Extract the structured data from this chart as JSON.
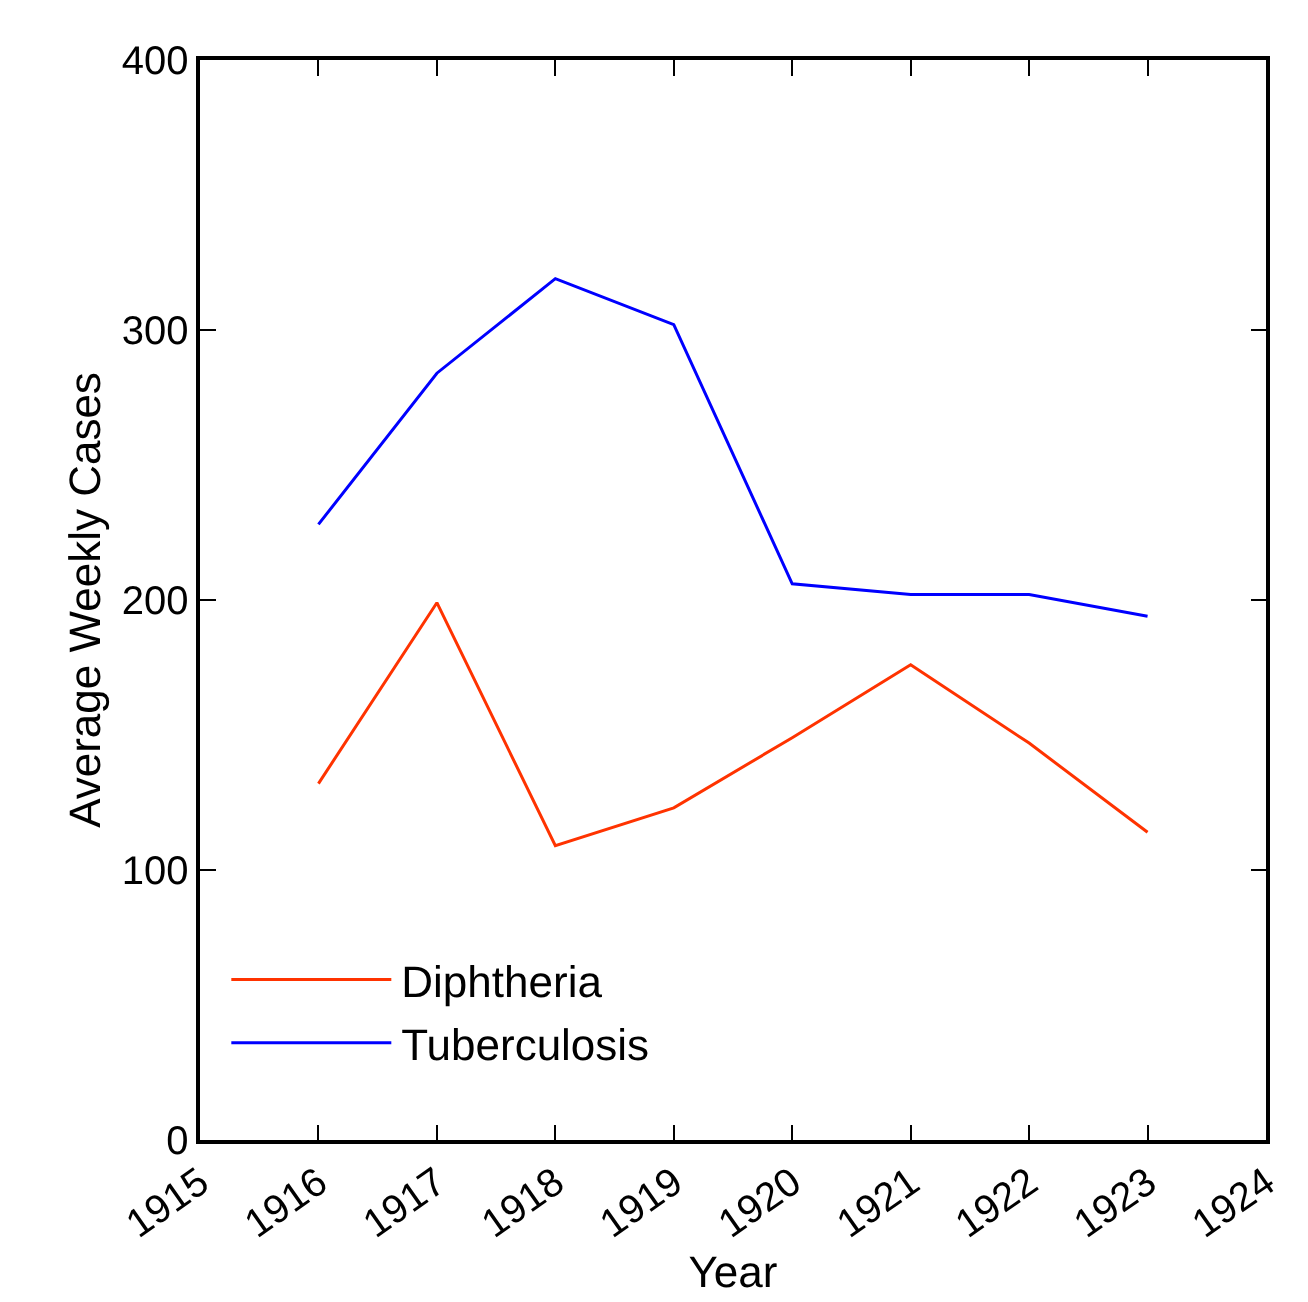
{
  "chart_data": {
    "type": "line",
    "xlabel": "Year",
    "ylabel": "Average Weekly Cases",
    "x": [
      1916,
      1917,
      1918,
      1919,
      1920,
      1921,
      1922,
      1923
    ],
    "series": [
      {
        "name": "Diphtheria",
        "color": "#ff3300",
        "values": [
          132,
          199,
          109,
          123,
          149,
          176,
          147,
          114
        ]
      },
      {
        "name": "Tuberculosis",
        "color": "#0000ff",
        "values": [
          228,
          284,
          319,
          302,
          206,
          202,
          202,
          194
        ]
      }
    ],
    "xlim": [
      1915,
      1924
    ],
    "xticks": [
      1915,
      1916,
      1917,
      1918,
      1919,
      1920,
      1921,
      1922,
      1923,
      1924
    ],
    "ylim": [
      0,
      400
    ],
    "yticks": [
      0,
      100,
      200,
      300,
      400
    ],
    "legend": "bottom left",
    "marker": "none",
    "line_style": "solid"
  }
}
